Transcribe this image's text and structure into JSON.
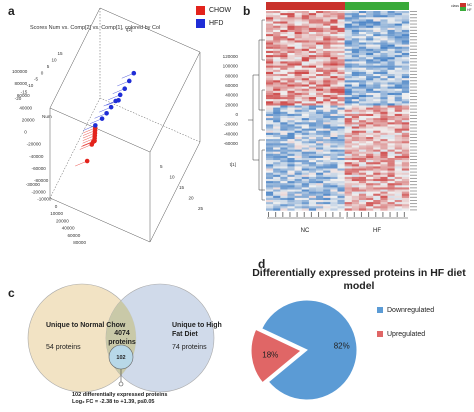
{
  "panel_a": {
    "letter": "a",
    "title": "Scores Num vs. Comp[2] vs. Comp[1], colored by Col",
    "legend": [
      {
        "label": "CHOW",
        "color": "#e3231c"
      },
      {
        "label": "HFD",
        "color": "#1f2dd6"
      }
    ],
    "axis_ticks_left": [
      "15",
      "10",
      "5",
      "0",
      "-5",
      "-10",
      "-15",
      "-20"
    ],
    "axis_ticks_z": [
      "100000",
      "80000",
      "60000",
      "40000",
      "20000",
      "0",
      "-20000",
      "-40000",
      "-60000",
      "-80000"
    ],
    "axis_ticks_right": [
      "120000",
      "100000",
      "80000",
      "60000",
      "40000",
      "20000",
      "0",
      "-20000",
      "-40000",
      "-60000"
    ],
    "axis_ticks_bottom": [
      "-30000",
      "-20000",
      "-10000",
      "0",
      "10000",
      "20000",
      "40000",
      "60000",
      "80000"
    ],
    "axis_ticks_depth": [
      "5",
      "10",
      "15",
      "20",
      "25"
    ],
    "axis_name_left": "Num",
    "axis_name_right": "t[1]",
    "axis_name_top": "t[2]"
  },
  "panel_b": {
    "letter": "b",
    "group_labels": [
      "NC",
      "HF"
    ],
    "colorbar_labels": [
      "class",
      "NC",
      "HF"
    ]
  },
  "panel_c": {
    "letter": "c",
    "left_title": "Unique to Normal Chow",
    "left_sub": "54 proteins",
    "center_title": "4074 proteins",
    "right_title": "Unique to High Fat Diet",
    "right_sub": "74 proteins",
    "inner_count": "102",
    "footnote_line1": "102 differentially expressed proteins",
    "footnote_line2": "Log₂ FC = -2.38 to +1.39, p≤0.05"
  },
  "panel_d": {
    "letter": "d",
    "title": "Differentially expressed proteins in HF diet model"
  },
  "chart_data": [
    {
      "type": "scatter",
      "title": "Scores Num vs. Comp[2] vs. Comp[1], colored by Col",
      "legend": [
        "CHOW",
        "HFD"
      ],
      "series": [
        {
          "name": "CHOW",
          "color": "#e3231c",
          "points": [
            [
              -18000,
              -30000,
              14
            ],
            [
              -15000,
              -25000,
              13
            ],
            [
              -12000,
              -22000,
              12
            ],
            [
              -10000,
              -20000,
              11
            ],
            [
              -8000,
              -15000,
              10
            ],
            [
              -6000,
              -10000,
              9
            ],
            [
              -4000,
              -5000,
              8
            ],
            [
              -2000,
              0,
              7
            ],
            [
              0,
              5000,
              6
            ],
            [
              -5000,
              -35000,
              5
            ]
          ]
        },
        {
          "name": "HFD",
          "color": "#1f2dd6",
          "points": [
            [
              18000,
              60000,
              14
            ],
            [
              16000,
              52000,
              13
            ],
            [
              14000,
              44000,
              12
            ],
            [
              12000,
              38000,
              11
            ],
            [
              10000,
              32000,
              10
            ],
            [
              8000,
              26000,
              9
            ],
            [
              6000,
              20000,
              8
            ],
            [
              4000,
              15000,
              7
            ],
            [
              20000,
              40000,
              6
            ],
            [
              2000,
              10000,
              5
            ]
          ]
        }
      ]
    },
    {
      "type": "heatmap",
      "columns_groups": [
        "NC",
        "HF"
      ],
      "colorbar": [
        "class",
        "NC",
        "HF"
      ]
    },
    {
      "type": "pie",
      "title": "Differentially expressed proteins in HF diet model",
      "legend": [
        "Downregulated",
        "Upregulated"
      ],
      "slices": [
        {
          "label": "Downregulated",
          "value": 82,
          "display": "82%",
          "color": "#5b9bd5"
        },
        {
          "label": "Upregulated",
          "value": 18,
          "display": "18%",
          "color": "#e06666"
        }
      ]
    }
  ]
}
